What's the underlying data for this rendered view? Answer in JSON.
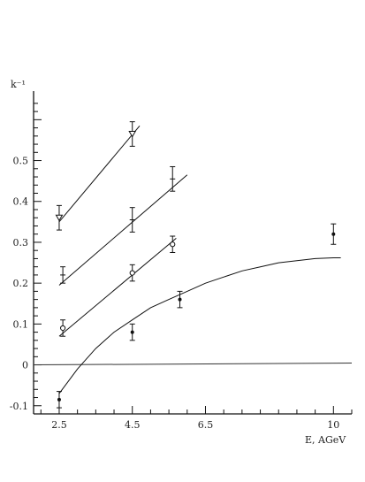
{
  "chart_data": {
    "type": "scatter",
    "title": "",
    "xlabel": "E, AGeV",
    "ylabel": "k⁻¹",
    "xlim": [
      1.8,
      10.5
    ],
    "ylim": [
      -0.12,
      0.67
    ],
    "x_ticks": [
      "2.5",
      "4.5",
      "6.5",
      "10"
    ],
    "x_tick_values": [
      2.5,
      4.5,
      6.5,
      10
    ],
    "y_ticks": [
      "-0.1",
      "0",
      "0.1",
      "0.2",
      "0.3",
      "0.4",
      "0.5"
    ],
    "y_tick_values": [
      -0.1,
      0,
      0.1,
      0.2,
      0.3,
      0.4,
      0.5
    ],
    "grid": false,
    "legend": "none",
    "series": [
      {
        "marker": "triangle-down-open",
        "points": [
          {
            "x": 2.5,
            "y": 0.36,
            "err": 0.03
          },
          {
            "x": 4.5,
            "y": 0.565,
            "err": 0.03
          }
        ],
        "fit": [
          [
            2.5,
            0.35
          ],
          [
            4.7,
            0.585
          ]
        ]
      },
      {
        "marker": "cross",
        "points": [
          {
            "x": 2.6,
            "y": 0.22,
            "err": 0.02
          },
          {
            "x": 4.5,
            "y": 0.355,
            "err": 0.03
          },
          {
            "x": 5.6,
            "y": 0.455,
            "err": 0.03
          }
        ],
        "fit": [
          [
            2.5,
            0.195
          ],
          [
            6.0,
            0.465
          ]
        ]
      },
      {
        "marker": "circle-open",
        "points": [
          {
            "x": 2.6,
            "y": 0.09,
            "err": 0.02
          },
          {
            "x": 4.5,
            "y": 0.225,
            "err": 0.02
          },
          {
            "x": 5.6,
            "y": 0.295,
            "err": 0.02
          }
        ],
        "fit": [
          [
            2.5,
            0.07
          ],
          [
            5.7,
            0.31
          ]
        ]
      },
      {
        "marker": "dot",
        "points": [
          {
            "x": 2.5,
            "y": -0.085,
            "err": 0.02
          },
          {
            "x": 4.5,
            "y": 0.08,
            "err": 0.02
          },
          {
            "x": 5.8,
            "y": 0.16,
            "err": 0.02
          },
          {
            "x": 10.0,
            "y": 0.32,
            "err": 0.025
          }
        ],
        "fit_curve": [
          [
            2.5,
            -0.07
          ],
          [
            3.0,
            -0.01
          ],
          [
            3.5,
            0.04
          ],
          [
            4.0,
            0.08
          ],
          [
            4.5,
            0.11
          ],
          [
            5.0,
            0.14
          ],
          [
            5.5,
            0.16
          ],
          [
            6.0,
            0.18
          ],
          [
            6.5,
            0.2
          ],
          [
            7.0,
            0.215
          ],
          [
            7.5,
            0.23
          ],
          [
            8.0,
            0.24
          ],
          [
            8.5,
            0.25
          ],
          [
            9.0,
            0.255
          ],
          [
            9.5,
            0.26
          ],
          [
            10.0,
            0.262
          ],
          [
            10.2,
            0.262
          ]
        ]
      }
    ]
  }
}
